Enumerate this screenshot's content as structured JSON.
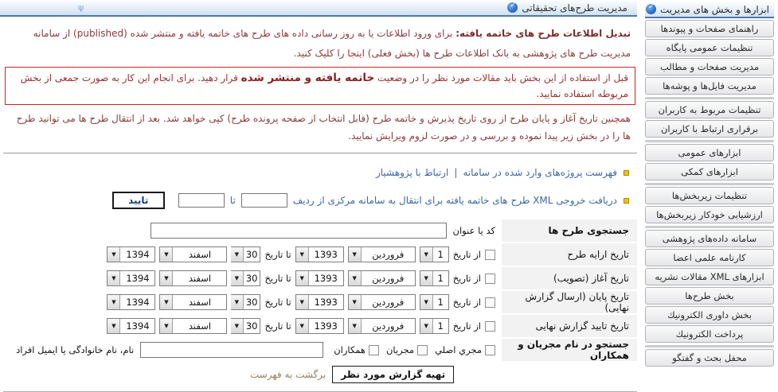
{
  "colors": {
    "accent_blue": "#4e79a8",
    "link_blue": "#3a67a8",
    "text_maroon": "#8e3a3a",
    "warning_border_red": "#d42222",
    "bullet_yellow": "#f2c112",
    "label_cell_gray": "#f2f2f2"
  },
  "header": {
    "title": "مديريت طرح‌های تحقيقاتی"
  },
  "sidebar": {
    "header": "ابزارها و بخش های مديريت",
    "groups": [
      [
        "راهنمای صفحات و پيوندها",
        "تنظيمات عمومی پايگاه",
        "مديريت صفحات و مطالب",
        "مديريت فايل‌ها و پوشه‌ها"
      ],
      [
        "تنظيمات مربوط به كاربران",
        "برقراری ارتباط با كاربران"
      ],
      [
        "ابزارهای عمومی",
        "ابزارهای كمكی"
      ],
      [
        "تنظيمات زيربخش‌ها",
        "ارزشيابی خودكار زيربخش‌ها"
      ],
      [
        "سامانه داده‌های پژوهشی",
        "كارنامه علمی اعضا",
        "ابزارهای XML مقالات نشريه",
        "بخش طرح‌ها",
        "بخش داوری الكترونيك",
        "پرداخت الكترونيك"
      ],
      [
        "محفل بحث و گفتگو"
      ]
    ]
  },
  "intro": {
    "lead": "تبديل اطلاعات طرح های خاتمه يافته:",
    "body": " برای ورود اطلاعات يا به روز رسانی داده های طرح های خاتمه يافته و منتشر شده (published) از سامانه مديريت طرح های پژوهشی به بانک اطلاعات طرح ها (بخش فعلی) ",
    "link": "اينجا",
    "tail": " را کليک کنيد."
  },
  "warning": {
    "part1": "قبل از استفاده از اين بخش بايد مقالات مورد نظر را در وضعيت ",
    "bold": "خاتمه يافته و منتشر شده",
    "part2": " قرار دهيد. برای انجام اين کار به صورت جمعی از بخش مربوطه استفاده نماييد."
  },
  "note": "همچنين تاريخ آغاز و پايان طرح از روی تاريخ پذيرش و خاتمه طرح (قابل انتخاب از صفحه پرونده طرح) کپی خواهد شد. بعد از انتقال طرح ها می توانيد طرح ها را در بخش زير پيدا نموده و بررسی و در صورت لزوم ويرايش نماييد.",
  "actions": {
    "link1": "فهرست پروژه‌های وارد شده در سامانه",
    "separator": "|",
    "link2": "ارتباط با پژوهشيار",
    "xml_text": "دريافت خروجی XML طرح های خاتمه يافته برای انتقال به سامانه مرکزی از رديف",
    "to_label": "تا",
    "confirm_button": "تاييد",
    "from_row_value": "",
    "to_row_value": ""
  },
  "search": {
    "title": "جستجوی طرح ها",
    "code_label": "کد يا عنوان",
    "code_value": "",
    "from_label": "از تاريخ",
    "to_label": "تا تاريخ",
    "from_day": "1",
    "from_month": "فروردين",
    "from_year": "1393",
    "to_day": "30",
    "to_month": "اسفند",
    "to_year": "1394",
    "date_rows": [
      "تاريخ ارايه طرح",
      "تاريخ آغاز (تصويب)",
      "تاريخ پايان (ارسال گزارش نهايی)",
      "تاريخ تاييد گزارش نهايی"
    ],
    "people_label": "جستجو در نام مجريان و همكاران",
    "people_checks": [
      "مجري اصلي",
      "مجريان",
      "همکاران"
    ],
    "people_value": "",
    "people_hint": "نام، نام خانوادگی يا ايميل افراد",
    "submit": "تهيه گزارش مورد نظر",
    "back_link": "برگشت به فهرست"
  }
}
